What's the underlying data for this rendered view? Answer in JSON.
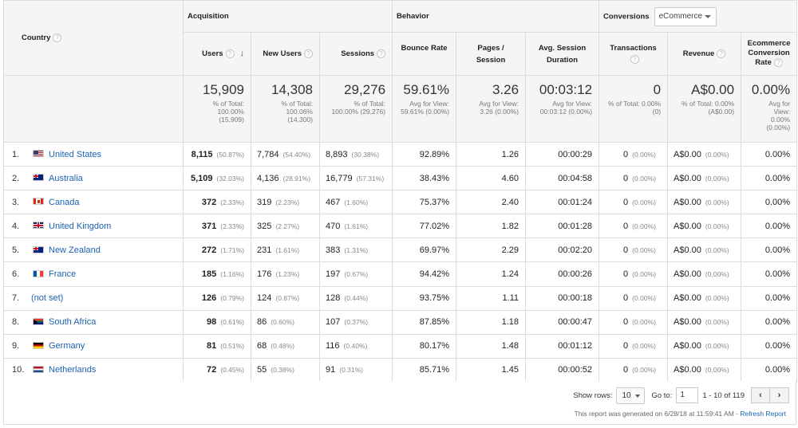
{
  "headers": {
    "country": "Country",
    "groups": {
      "acquisition": "Acquisition",
      "behavior": "Behavior",
      "conversions": "Conversions"
    },
    "conversions_select": "eCommerce",
    "columns": {
      "users": "Users",
      "new_users": "New Users",
      "sessions": "Sessions",
      "bounce_rate": "Bounce Rate",
      "pages_1": "Pages /",
      "pages_2": "Session",
      "avg_dur_1": "Avg. Session",
      "avg_dur_2": "Duration",
      "transactions": "Transactions",
      "revenue": "Revenue",
      "ecr_1": "Ecommerce",
      "ecr_2": "Conversion",
      "ecr_3": "Rate"
    }
  },
  "totals": {
    "users": {
      "big": "15,909",
      "l1": "% of Total:",
      "l2": "100.00%",
      "l3": "(15,909)"
    },
    "new_users": {
      "big": "14,308",
      "l1": "% of Total:",
      "l2": "100.06%",
      "l3": "(14,300)"
    },
    "sessions": {
      "big": "29,276",
      "l1": "% of Total:",
      "l2": "100.00% (29,276)"
    },
    "bounce_rate": {
      "big": "59.61%",
      "l1": "Avg for View:",
      "l2": "59.61% (0.00%)"
    },
    "pages": {
      "big": "3.26",
      "l1": "Avg for View:",
      "l2": "3.26 (0.00%)"
    },
    "avg_dur": {
      "big": "00:03:12",
      "l1": "Avg for View:",
      "l2": "00:03:12 (0.00%)"
    },
    "transactions": {
      "big": "0",
      "l1": "% of Total: 0.00%",
      "l2": "(0)"
    },
    "revenue": {
      "big": "A$0.00",
      "l1": "% of Total: 0.00%",
      "l2": "(A$0.00)"
    },
    "ecr": {
      "big": "0.00%",
      "l1": "Avg for",
      "l2": "View:",
      "l3": "0.00%",
      "l4": "(0.00%)"
    }
  },
  "rows": [
    {
      "n": "1.",
      "flag": "us",
      "country": "United States",
      "users": "8,115",
      "users_pct": "(50.87%)",
      "new_users": "7,784",
      "new_users_pct": "(54.40%)",
      "sessions": "8,893",
      "sessions_pct": "(30.38%)",
      "bounce": "92.89%",
      "pages": "1.26",
      "dur": "00:00:29",
      "trans": "0",
      "trans_pct": "(0.00%)",
      "rev": "A$0.00",
      "rev_pct": "(0.00%)",
      "ecr": "0.00%"
    },
    {
      "n": "2.",
      "flag": "au",
      "country": "Australia",
      "users": "5,109",
      "users_pct": "(32.03%)",
      "new_users": "4,136",
      "new_users_pct": "(28.91%)",
      "sessions": "16,779",
      "sessions_pct": "(57.31%)",
      "bounce": "38.43%",
      "pages": "4.60",
      "dur": "00:04:58",
      "trans": "0",
      "trans_pct": "(0.00%)",
      "rev": "A$0.00",
      "rev_pct": "(0.00%)",
      "ecr": "0.00%"
    },
    {
      "n": "3.",
      "flag": "ca",
      "country": "Canada",
      "users": "372",
      "users_pct": "(2.33%)",
      "new_users": "319",
      "new_users_pct": "(2.23%)",
      "sessions": "467",
      "sessions_pct": "(1.60%)",
      "bounce": "75.37%",
      "pages": "2.40",
      "dur": "00:01:24",
      "trans": "0",
      "trans_pct": "(0.00%)",
      "rev": "A$0.00",
      "rev_pct": "(0.00%)",
      "ecr": "0.00%"
    },
    {
      "n": "4.",
      "flag": "gb",
      "country": "United Kingdom",
      "users": "371",
      "users_pct": "(2.33%)",
      "new_users": "325",
      "new_users_pct": "(2.27%)",
      "sessions": "470",
      "sessions_pct": "(1.61%)",
      "bounce": "77.02%",
      "pages": "1.82",
      "dur": "00:01:28",
      "trans": "0",
      "trans_pct": "(0.00%)",
      "rev": "A$0.00",
      "rev_pct": "(0.00%)",
      "ecr": "0.00%"
    },
    {
      "n": "5.",
      "flag": "nz",
      "country": "New Zealand",
      "users": "272",
      "users_pct": "(1.71%)",
      "new_users": "231",
      "new_users_pct": "(1.61%)",
      "sessions": "383",
      "sessions_pct": "(1.31%)",
      "bounce": "69.97%",
      "pages": "2.29",
      "dur": "00:02:20",
      "trans": "0",
      "trans_pct": "(0.00%)",
      "rev": "A$0.00",
      "rev_pct": "(0.00%)",
      "ecr": "0.00%"
    },
    {
      "n": "6.",
      "flag": "fr",
      "country": "France",
      "users": "185",
      "users_pct": "(1.16%)",
      "new_users": "176",
      "new_users_pct": "(1.23%)",
      "sessions": "197",
      "sessions_pct": "(0.67%)",
      "bounce": "94.42%",
      "pages": "1.24",
      "dur": "00:00:26",
      "trans": "0",
      "trans_pct": "(0.00%)",
      "rev": "A$0.00",
      "rev_pct": "(0.00%)",
      "ecr": "0.00%"
    },
    {
      "n": "7.",
      "flag": "",
      "country": "(not set)",
      "users": "126",
      "users_pct": "(0.79%)",
      "new_users": "124",
      "new_users_pct": "(0.87%)",
      "sessions": "128",
      "sessions_pct": "(0.44%)",
      "bounce": "93.75%",
      "pages": "1.11",
      "dur": "00:00:18",
      "trans": "0",
      "trans_pct": "(0.00%)",
      "rev": "A$0.00",
      "rev_pct": "(0.00%)",
      "ecr": "0.00%"
    },
    {
      "n": "8.",
      "flag": "za",
      "country": "South Africa",
      "users": "98",
      "users_pct": "(0.61%)",
      "new_users": "86",
      "new_users_pct": "(0.60%)",
      "sessions": "107",
      "sessions_pct": "(0.37%)",
      "bounce": "87.85%",
      "pages": "1.18",
      "dur": "00:00:47",
      "trans": "0",
      "trans_pct": "(0.00%)",
      "rev": "A$0.00",
      "rev_pct": "(0.00%)",
      "ecr": "0.00%"
    },
    {
      "n": "9.",
      "flag": "de",
      "country": "Germany",
      "users": "81",
      "users_pct": "(0.51%)",
      "new_users": "68",
      "new_users_pct": "(0.48%)",
      "sessions": "116",
      "sessions_pct": "(0.40%)",
      "bounce": "80.17%",
      "pages": "1.48",
      "dur": "00:01:12",
      "trans": "0",
      "trans_pct": "(0.00%)",
      "rev": "A$0.00",
      "rev_pct": "(0.00%)",
      "ecr": "0.00%"
    },
    {
      "n": "10.",
      "flag": "nl",
      "country": "Netherlands",
      "users": "72",
      "users_pct": "(0.45%)",
      "new_users": "55",
      "new_users_pct": "(0.38%)",
      "sessions": "91",
      "sessions_pct": "(0.31%)",
      "bounce": "85.71%",
      "pages": "1.45",
      "dur": "00:00:52",
      "trans": "0",
      "trans_pct": "(0.00%)",
      "rev": "A$0.00",
      "rev_pct": "(0.00%)",
      "ecr": "0.00%"
    }
  ],
  "footer": {
    "show_rows_label": "Show rows:",
    "show_rows_value": "10",
    "goto_label": "Go to:",
    "goto_value": "1",
    "range": "1 - 10 of 119",
    "prev": "‹",
    "next": "›",
    "generated_text": "This report was generated on 6/28/18 at 11:59:41 AM -",
    "refresh": "Refresh Report"
  },
  "icons": {
    "help": "question-circle-icon",
    "sort": "sort-down-arrow-icon"
  }
}
